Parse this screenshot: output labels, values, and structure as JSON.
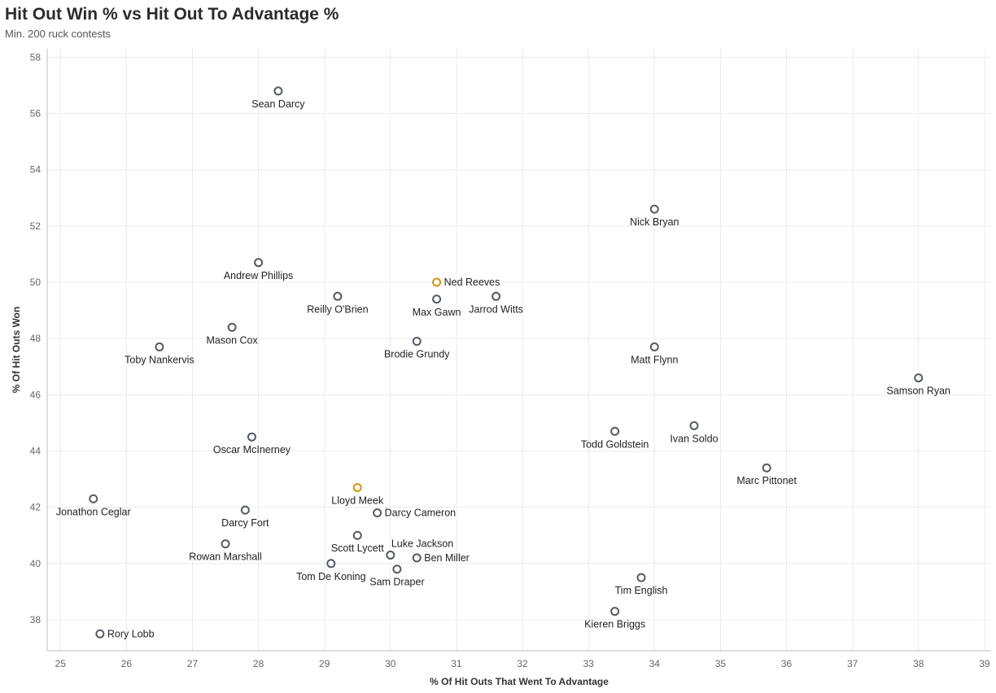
{
  "header": {
    "title": "Hit Out Win % vs Hit Out To Advantage %",
    "subtitle": "Min. 200 ruck contests"
  },
  "colors": {
    "default": "#555a64",
    "highlight": "#d4940f",
    "grid": "#ececec",
    "axis": "#bfbfbf"
  },
  "chart_data": {
    "type": "scatter",
    "title": "Hit Out Win % vs Hit Out To Advantage %",
    "subtitle": "Min. 200 ruck contests",
    "xlabel": "% Of Hit Outs That Went To Advantage",
    "ylabel": "% Of Hit Outs Won",
    "xlim": [
      24.8,
      39.1
    ],
    "ylim": [
      36.9,
      58.3
    ],
    "xticks": [
      25,
      26,
      27,
      28,
      29,
      30,
      31,
      32,
      33,
      34,
      35,
      36,
      37,
      38,
      39
    ],
    "yticks": [
      38,
      40,
      42,
      44,
      46,
      48,
      50,
      52,
      54,
      56,
      58
    ],
    "grid": true,
    "points": [
      {
        "name": "Sean Darcy",
        "x": 28.3,
        "y": 56.8,
        "highlight": false,
        "label_pos": "below"
      },
      {
        "name": "Nick Bryan",
        "x": 34.0,
        "y": 52.6,
        "highlight": false,
        "label_pos": "below"
      },
      {
        "name": "Andrew Phillips",
        "x": 28.0,
        "y": 50.7,
        "highlight": false,
        "label_pos": "below"
      },
      {
        "name": "Ned Reeves",
        "x": 30.7,
        "y": 50.0,
        "highlight": true,
        "label_pos": "right"
      },
      {
        "name": "Reilly O'Brien",
        "x": 29.2,
        "y": 49.5,
        "highlight": false,
        "label_pos": "below"
      },
      {
        "name": "Max Gawn",
        "x": 30.7,
        "y": 49.4,
        "highlight": false,
        "label_pos": "below"
      },
      {
        "name": "Jarrod Witts",
        "x": 31.6,
        "y": 49.5,
        "highlight": false,
        "label_pos": "below"
      },
      {
        "name": "Mason Cox",
        "x": 27.6,
        "y": 48.4,
        "highlight": false,
        "label_pos": "below"
      },
      {
        "name": "Brodie Grundy",
        "x": 30.4,
        "y": 47.9,
        "highlight": false,
        "label_pos": "below"
      },
      {
        "name": "Toby Nankervis",
        "x": 26.5,
        "y": 47.7,
        "highlight": false,
        "label_pos": "below"
      },
      {
        "name": "Matt Flynn",
        "x": 34.0,
        "y": 47.7,
        "highlight": false,
        "label_pos": "below"
      },
      {
        "name": "Samson Ryan",
        "x": 38.0,
        "y": 46.6,
        "highlight": false,
        "label_pos": "below"
      },
      {
        "name": "Oscar McInerney",
        "x": 27.9,
        "y": 44.5,
        "highlight": false,
        "label_pos": "below"
      },
      {
        "name": "Todd Goldstein",
        "x": 33.4,
        "y": 44.7,
        "highlight": false,
        "label_pos": "below"
      },
      {
        "name": "Ivan Soldo",
        "x": 34.6,
        "y": 44.9,
        "highlight": false,
        "label_pos": "below"
      },
      {
        "name": "Marc Pittonet",
        "x": 35.7,
        "y": 43.4,
        "highlight": false,
        "label_pos": "below"
      },
      {
        "name": "Lloyd Meek",
        "x": 29.5,
        "y": 42.7,
        "highlight": true,
        "label_pos": "below"
      },
      {
        "name": "Jonathon Ceglar",
        "x": 25.5,
        "y": 42.3,
        "highlight": false,
        "label_pos": "below"
      },
      {
        "name": "Darcy Fort",
        "x": 27.8,
        "y": 41.9,
        "highlight": false,
        "label_pos": "below"
      },
      {
        "name": "Darcy Cameron",
        "x": 29.8,
        "y": 41.8,
        "highlight": false,
        "label_pos": "right"
      },
      {
        "name": "Scott Lycett",
        "x": 29.5,
        "y": 41.0,
        "highlight": false,
        "label_pos": "below"
      },
      {
        "name": "Rowan Marshall",
        "x": 27.5,
        "y": 40.7,
        "highlight": false,
        "label_pos": "below"
      },
      {
        "name": "Luke Jackson",
        "x": 30.0,
        "y": 40.3,
        "highlight": false,
        "label_pos": "above-right"
      },
      {
        "name": "Ben Miller",
        "x": 30.4,
        "y": 40.2,
        "highlight": false,
        "label_pos": "right"
      },
      {
        "name": "Tom De Koning",
        "x": 29.1,
        "y": 40.0,
        "highlight": false,
        "label_pos": "below"
      },
      {
        "name": "Sam Draper",
        "x": 30.1,
        "y": 39.8,
        "highlight": false,
        "label_pos": "below"
      },
      {
        "name": "Tim English",
        "x": 33.8,
        "y": 39.5,
        "highlight": false,
        "label_pos": "below"
      },
      {
        "name": "Kieren Briggs",
        "x": 33.4,
        "y": 38.3,
        "highlight": false,
        "label_pos": "below"
      },
      {
        "name": "Rory Lobb",
        "x": 25.6,
        "y": 37.5,
        "highlight": false,
        "label_pos": "right"
      }
    ]
  }
}
